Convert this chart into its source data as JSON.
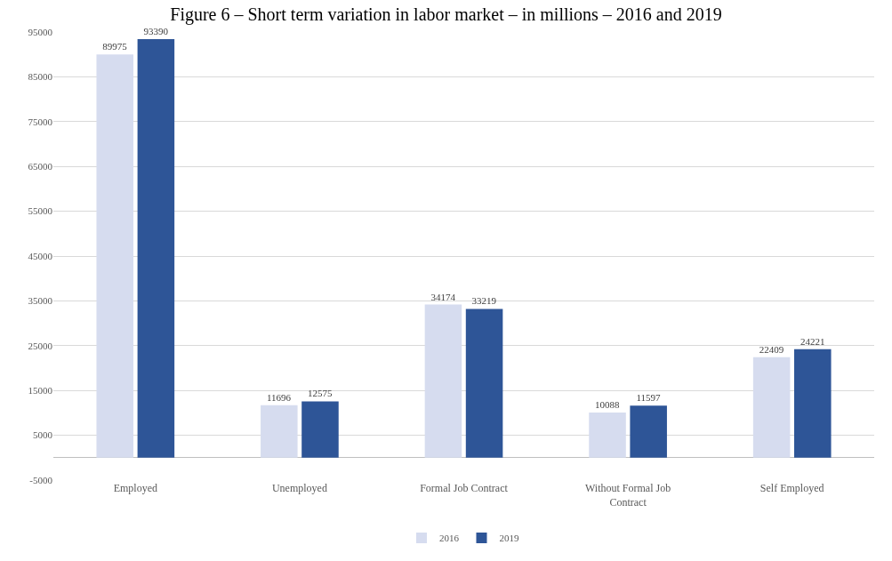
{
  "chart_data": {
    "type": "bar",
    "title": "Figure 6 – Short term variation in labor market – in millions – 2016 and 2019",
    "categories": [
      "Employed",
      "Unemployed",
      "Formal Job Contract",
      "Without Formal Job Contract",
      "Self Employed"
    ],
    "series": [
      {
        "name": "2016",
        "color": "#d6dcef",
        "values": [
          89975,
          11696,
          34174,
          10088,
          22409
        ]
      },
      {
        "name": "2019",
        "color": "#2e5597",
        "values": [
          93390,
          12575,
          33219,
          11597,
          24221
        ]
      }
    ],
    "ylim": [
      -5000,
      95000
    ],
    "yticks": [
      -5000,
      5000,
      15000,
      25000,
      35000,
      45000,
      55000,
      65000,
      75000,
      85000,
      95000
    ],
    "grid": "y",
    "legend": "bottom",
    "data_labels": true
  }
}
